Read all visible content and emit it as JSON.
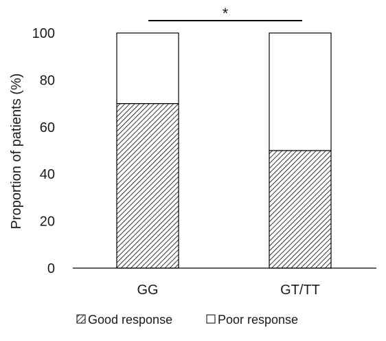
{
  "chart_data": {
    "type": "bar",
    "stacked": true,
    "categories": [
      "GG",
      "GT/TT"
    ],
    "series": [
      {
        "name": "Good response",
        "values": [
          70,
          50
        ],
        "pattern": "hatched"
      },
      {
        "name": "Poor response",
        "values": [
          30,
          50
        ],
        "pattern": "none"
      }
    ],
    "ylabel": "Proportion of patients (%)",
    "xlabel": "",
    "ylim": [
      0,
      100
    ],
    "yticks": [
      0,
      20,
      40,
      60,
      80,
      100
    ],
    "grid": false,
    "legend": "bottom",
    "annotations": [
      {
        "text": "*",
        "type": "significance-bracket",
        "between": [
          "GG",
          "GT/TT"
        ]
      }
    ],
    "colors": {
      "bar_stroke": "#000000",
      "hatch": "#000000",
      "fill_plain": "#ffffff"
    }
  }
}
